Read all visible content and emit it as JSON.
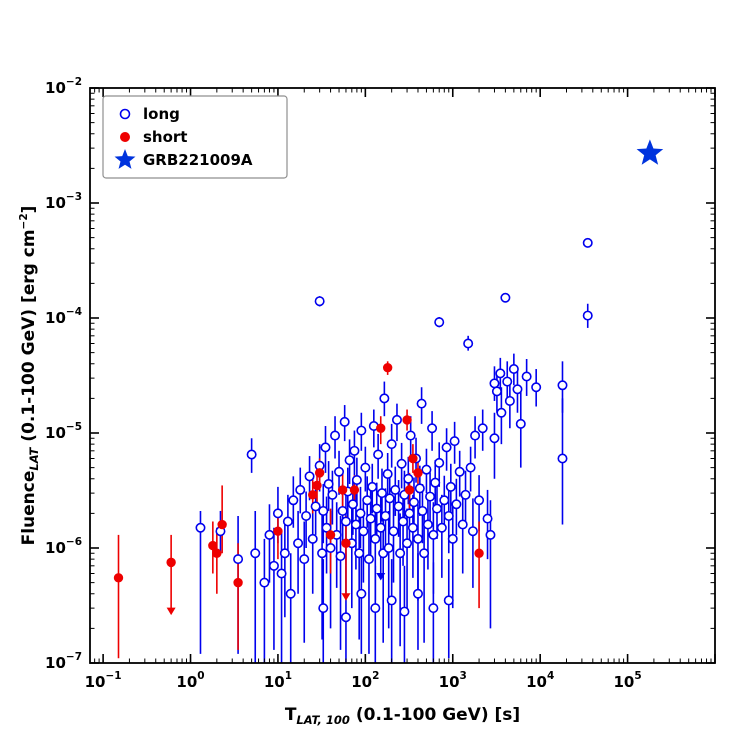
{
  "figure": {
    "background": "#ffffff"
  },
  "chart_data": {
    "type": "scatter",
    "title": "",
    "xlabel": {
      "pre": "T",
      "sub": "LAT, 100",
      "post": " (0.1-100 GeV) [s]"
    },
    "ylabel": {
      "pre": "Fluence",
      "sub": "LAT",
      "post": " (0.1-100 GeV) [erg cm",
      "sup": "−2",
      "post2": "]"
    },
    "x_scale": "log",
    "y_scale": "log",
    "xlim_log10": [
      -1.15,
      6.0
    ],
    "ylim_log10": [
      -7,
      -2
    ],
    "x_tick_exponents": [
      -1,
      0,
      1,
      2,
      3,
      4,
      5
    ],
    "y_tick_exponents": [
      -7,
      -6,
      -5,
      -4,
      -3,
      -2
    ],
    "grid": false,
    "colors": {
      "long": "#0000ee",
      "short": "#ee0000",
      "star": "#0033dd"
    },
    "legend": {
      "position": "upper-left",
      "entries": [
        {
          "label": "long",
          "marker": "open-circle",
          "color": "#0000ee"
        },
        {
          "label": "short",
          "marker": "filled-circle",
          "color": "#ee0000"
        },
        {
          "label": "GRB221009A",
          "marker": "star",
          "color": "#0033dd"
        }
      ]
    },
    "series": [
      {
        "name": "long",
        "marker": "open-circle",
        "color": "#0000ee",
        "points": [
          [
            1.3,
            1.5e-06,
            1.2e-07,
            2.1e-06
          ],
          [
            2.2,
            1.4e-06,
            9e-07,
            2.1e-06
          ],
          [
            3.5,
            8e-07,
            1.2e-07,
            1.9e-06
          ],
          [
            5,
            6.5e-06,
            4.5e-06,
            9e-06
          ],
          [
            5.5,
            9e-07,
            1e-07,
            2.1e-06
          ],
          [
            7,
            5e-07,
            1e-07,
            1.2e-06
          ],
          [
            8,
            1.3e-06,
            5e-07,
            2.4e-06
          ],
          [
            9,
            7e-07,
            1.3e-07,
            1.5e-06
          ],
          [
            10,
            2e-06,
            1.1e-06,
            3.4e-06
          ],
          [
            11,
            6e-07,
            1e-07,
            1.4e-06
          ],
          [
            12,
            9e-07,
            2.5e-07,
            1.8e-06
          ],
          [
            13,
            1.7e-06,
            9e-07,
            2.9e-06
          ],
          [
            14,
            4e-07,
            1e-07,
            9e-07
          ],
          [
            15,
            2.6e-06,
            1.5e-06,
            4.2e-06
          ],
          [
            17,
            1.1e-06,
            4e-07,
            2.1e-06
          ],
          [
            18,
            3.2e-06,
            2e-06,
            5e-06
          ],
          [
            20,
            8e-07,
            1.5e-07,
            1.7e-06
          ],
          [
            21,
            1.9e-06,
            1e-06,
            3.1e-06
          ],
          [
            23,
            4.2e-06,
            2.6e-06,
            6.3e-06
          ],
          [
            25,
            1.2e-06,
            4e-07,
            2.3e-06
          ],
          [
            27,
            2.3e-06,
            1.3e-06,
            3.8e-06
          ],
          [
            30,
            0.00014,
            0.000126,
            0.000155
          ],
          [
            30,
            5.2e-06,
            3.1e-06,
            8e-06
          ],
          [
            32,
            9e-07,
            1.6e-07,
            2e-06
          ],
          [
            33,
            3e-07,
            1e-07,
            8e-07
          ],
          [
            33,
            2.1e-06,
            1.1e-06,
            3.6e-06
          ],
          [
            35,
            7.5e-06,
            4.5e-06,
            1.15e-05
          ],
          [
            36,
            1.5e-06,
            6e-07,
            2.8e-06
          ],
          [
            38,
            3.6e-06,
            2.1e-06,
            5.7e-06
          ],
          [
            40,
            1e-06,
            2e-07,
            2.1e-06
          ],
          [
            42,
            2.9e-06,
            1.6e-06,
            4.7e-06
          ],
          [
            45,
            9.5e-06,
            6e-06,
            1.4e-05
          ],
          [
            47,
            1.3e-06,
            4.5e-07,
            2.5e-06
          ],
          [
            50,
            4.6e-06,
            2.9e-06,
            7e-06
          ],
          [
            52,
            8.5e-07,
            1.3e-07,
            1.9e-06
          ],
          [
            55,
            2.1e-06,
            1.1e-06,
            3.6e-06
          ],
          [
            58,
            1.25e-05,
            8.5e-06,
            1.75e-05
          ],
          [
            60,
            2.5e-07,
            1e-07,
            7e-07
          ],
          [
            60,
            1.7e-06,
            7e-07,
            3.1e-06
          ],
          [
            63,
            3.1e-06,
            1.8e-06,
            5e-06
          ],
          [
            66,
            5.8e-06,
            3.6e-06,
            8.8e-06
          ],
          [
            70,
            1.1e-06,
            3e-07,
            2.2e-06
          ],
          [
            72,
            2.4e-06,
            1.3e-06,
            4e-06
          ],
          [
            75,
            7e-06,
            4.3e-06,
            1.05e-05
          ],
          [
            78,
            1.6e-06,
            6.5e-07,
            3e-06
          ],
          [
            80,
            3.9e-06,
            2.3e-06,
            6.1e-06
          ],
          [
            85,
            9e-07,
            1.6e-07,
            2e-06
          ],
          [
            88,
            2e-06,
            1e-06,
            3.4e-06
          ],
          [
            90,
            4e-07,
            1.2e-07,
            9e-07
          ],
          [
            90,
            1.05e-05,
            7e-06,
            1.5e-05
          ],
          [
            95,
            1.4e-06,
            5e-07,
            2.7e-06
          ],
          [
            100,
            5e-06,
            3.1e-06,
            7.6e-06
          ],
          [
            105,
            2.6e-06,
            1.5e-06,
            4.2e-06
          ],
          [
            110,
            8e-07,
            1.2e-07,
            1.8e-06
          ],
          [
            115,
            1.8e-06,
            8e-07,
            3.2e-06
          ],
          [
            120,
            3.4e-06,
            2e-06,
            5.4e-06
          ],
          [
            125,
            1.15e-05,
            7.5e-06,
            1.6e-05
          ],
          [
            130,
            3e-07,
            1e-07,
            7e-07
          ],
          [
            130,
            1.2e-06,
            3.5e-07,
            2.4e-06
          ],
          [
            135,
            2.2e-06,
            1.2e-06,
            3.7e-06
          ],
          [
            140,
            6.5e-06,
            4e-06,
            9.8e-06
          ],
          [
            150,
            1.5e-06,
            6e-07,
            2.8e-06,
            1
          ],
          [
            155,
            3e-06,
            1.7e-06,
            4.9e-06
          ],
          [
            160,
            9e-07,
            1.5e-07,
            2e-06
          ],
          [
            165,
            2e-05,
            1.4e-05,
            2.8e-05
          ],
          [
            170,
            1.9e-06,
            9e-07,
            3.3e-06
          ],
          [
            180,
            4.4e-06,
            2.7e-06,
            6.7e-06
          ],
          [
            185,
            1e-06,
            2e-07,
            2.1e-06
          ],
          [
            190,
            2.7e-06,
            1.5e-06,
            4.4e-06
          ],
          [
            200,
            3.5e-07,
            1e-07,
            8e-07
          ],
          [
            200,
            8e-06,
            5e-06,
            1.2e-05
          ],
          [
            210,
            1.4e-06,
            5e-07,
            2.7e-06
          ],
          [
            220,
            3.2e-06,
            1.9e-06,
            5.1e-06
          ],
          [
            230,
            1.3e-05,
            8.5e-06,
            1.8e-05
          ],
          [
            240,
            2.3e-06,
            1.25e-06,
            3.9e-06
          ],
          [
            250,
            9e-07,
            1.4e-07,
            2e-06
          ],
          [
            260,
            5.4e-06,
            3.3e-06,
            8.2e-06
          ],
          [
            270,
            1.7e-06,
            7e-07,
            3.1e-06
          ],
          [
            280,
            2.8e-07,
            1e-07,
            7e-07
          ],
          [
            280,
            2.9e-06,
            1.6e-06,
            4.7e-06
          ],
          [
            300,
            1.1e-06,
            3e-07,
            2.2e-06
          ],
          [
            310,
            4e-06,
            2.4e-06,
            6.2e-06
          ],
          [
            320,
            2e-06,
            1e-06,
            3.4e-06
          ],
          [
            330,
            9.5e-06,
            6e-06,
            1.4e-05
          ],
          [
            350,
            1.5e-06,
            5.5e-07,
            2.9e-06
          ],
          [
            360,
            2.5e-06,
            1.4e-06,
            4.1e-06
          ],
          [
            380,
            6e-06,
            3.7e-06,
            9.1e-06
          ],
          [
            400,
            4e-07,
            1.3e-07,
            9e-07
          ],
          [
            400,
            1.2e-06,
            3.5e-07,
            2.4e-06
          ],
          [
            420,
            3.3e-06,
            1.9e-06,
            5.2e-06
          ],
          [
            440,
            1.8e-05,
            1.2e-05,
            2.5e-05
          ],
          [
            450,
            2.1e-06,
            1.1e-06,
            3.6e-06
          ],
          [
            470,
            9e-07,
            1.5e-07,
            2e-06
          ],
          [
            500,
            4.8e-06,
            3e-06,
            7.3e-06
          ],
          [
            520,
            1.6e-06,
            6.5e-07,
            3e-06
          ],
          [
            550,
            2.8e-06,
            1.55e-06,
            4.55e-06
          ],
          [
            580,
            1.1e-05,
            7e-06,
            1.55e-05
          ],
          [
            600,
            3e-07,
            1e-07,
            7.5e-07
          ],
          [
            600,
            1.3e-06,
            4e-07,
            2.5e-06
          ],
          [
            630,
            3.7e-06,
            2.2e-06,
            5.8e-06
          ],
          [
            660,
            2.2e-06,
            1.2e-06,
            3.7e-06
          ],
          [
            700,
            9.2e-05,
            8.3e-05,
            0.000102
          ],
          [
            700,
            5.5e-06,
            3.4e-06,
            8.3e-06
          ],
          [
            750,
            1.5e-06,
            5.5e-07,
            2.9e-06
          ],
          [
            800,
            2.6e-06,
            1.45e-06,
            4.25e-06
          ],
          [
            850,
            7.5e-06,
            4.7e-06,
            1.1e-05
          ],
          [
            900,
            3.5e-07,
            1.1e-07,
            8e-07
          ],
          [
            900,
            1.9e-06,
            9e-07,
            3.3e-06
          ],
          [
            950,
            3.4e-06,
            2e-06,
            5.4e-06
          ],
          [
            1000,
            1.2e-06,
            3e-07,
            2.4e-06
          ],
          [
            1050,
            8.5e-06,
            5.4e-06,
            1.25e-05
          ],
          [
            1100,
            2.4e-06,
            1.3e-06,
            4e-06
          ],
          [
            1200,
            4.6e-06,
            2.8e-06,
            7e-06
          ],
          [
            1300,
            1.6e-06,
            6e-07,
            3e-06
          ],
          [
            1400,
            2.9e-06,
            1.6e-06,
            4.7e-06
          ],
          [
            1500,
            6e-05,
            5.2e-05,
            7e-05
          ],
          [
            1600,
            5e-06,
            3.1e-06,
            7.6e-06
          ],
          [
            1700,
            1.4e-06,
            4.5e-07,
            2.7e-06
          ],
          [
            1800,
            9.5e-06,
            6e-06,
            1.4e-05
          ],
          [
            2000,
            2.6e-06,
            1.4e-06,
            4.3e-06
          ],
          [
            2200,
            1.1e-05,
            7e-06,
            1.6e-05
          ],
          [
            2500,
            1.8e-06,
            8e-07,
            3.2e-06
          ],
          [
            2700,
            1.3e-06,
            2e-07,
            2.6e-06
          ],
          [
            3000,
            2.7e-05,
            1.9e-05,
            3.8e-05
          ],
          [
            3000,
            9e-06,
            4e-06,
            1.5e-05
          ],
          [
            3200,
            2.3e-05,
            1.5e-05,
            3.4e-05
          ],
          [
            3500,
            3.3e-05,
            2.4e-05,
            4.5e-05
          ],
          [
            3600,
            1.5e-05,
            8e-06,
            2.5e-05
          ],
          [
            4000,
            0.00015,
            0.000138,
            0.000163
          ],
          [
            4200,
            2.8e-05,
            1.8e-05,
            4.2e-05
          ],
          [
            4500,
            1.9e-05,
            1.1e-05,
            3e-05
          ],
          [
            5000,
            3.6e-05,
            2.6e-05,
            4.9e-05
          ],
          [
            5500,
            2.4e-05,
            1.5e-05,
            3.7e-05
          ],
          [
            6000,
            1.2e-05,
            5e-06,
            2.3e-05
          ],
          [
            7000,
            3.1e-05,
            2.1e-05,
            4.4e-05
          ],
          [
            9000,
            2.5e-05,
            1.7e-05,
            3.6e-05
          ],
          [
            18000,
            6e-06,
            1.6e-06,
            2e-05
          ],
          [
            18000,
            2.6e-05,
            1.5e-05,
            4.2e-05
          ],
          [
            35000,
            0.00045,
            0.00043,
            0.000472
          ],
          [
            35000,
            0.000105,
            8.2e-05,
            0.000133
          ]
        ]
      },
      {
        "name": "short",
        "marker": "filled-circle",
        "color": "#ee0000",
        "points": [
          [
            0.15,
            5.5e-07,
            1.1e-07,
            1.3e-06
          ],
          [
            0.6,
            7.5e-07,
            3e-07,
            1.3e-06,
            1
          ],
          [
            1.8,
            1.05e-06,
            6e-07,
            1.7e-06
          ],
          [
            2.0,
            9e-07,
            4e-07,
            1.5e-06
          ],
          [
            2.3,
            1.6e-06,
            9e-07,
            3.5e-06
          ],
          [
            3.5,
            5e-07,
            1.3e-07,
            1.1e-06
          ],
          [
            10,
            1.4e-06,
            8e-07,
            2.2e-06
          ],
          [
            25,
            2.9e-06,
            2e-06,
            4e-06
          ],
          [
            28,
            3.5e-06,
            2.5e-06,
            5e-06
          ],
          [
            30,
            4.5e-06,
            3.2e-06,
            6e-06
          ],
          [
            40,
            1.3e-06,
            6e-07,
            2.2e-06
          ],
          [
            55,
            3.2e-06,
            2.2e-06,
            4.5e-06
          ],
          [
            60,
            1.1e-06,
            4e-07,
            1.9e-06,
            1
          ],
          [
            75,
            3.2e-06,
            2.3e-06,
            4.3e-06
          ],
          [
            150,
            1.1e-05,
            8e-06,
            1.4e-05
          ],
          [
            180,
            3.7e-05,
            3.2e-05,
            4.2e-05
          ],
          [
            300,
            1.3e-05,
            1.05e-05,
            1.6e-05
          ],
          [
            320,
            3.2e-06,
            2.2e-06,
            4.5e-06
          ],
          [
            350,
            6e-06,
            4.5e-06,
            8e-06
          ],
          [
            400,
            4.5e-06,
            3e-06,
            6.5e-06
          ],
          [
            2000,
            9e-07,
            3e-07,
            1.7e-06
          ]
        ]
      },
      {
        "name": "GRB221009A",
        "marker": "star",
        "color": "#0033dd",
        "points": [
          [
            180000,
            0.0027
          ]
        ]
      }
    ]
  }
}
